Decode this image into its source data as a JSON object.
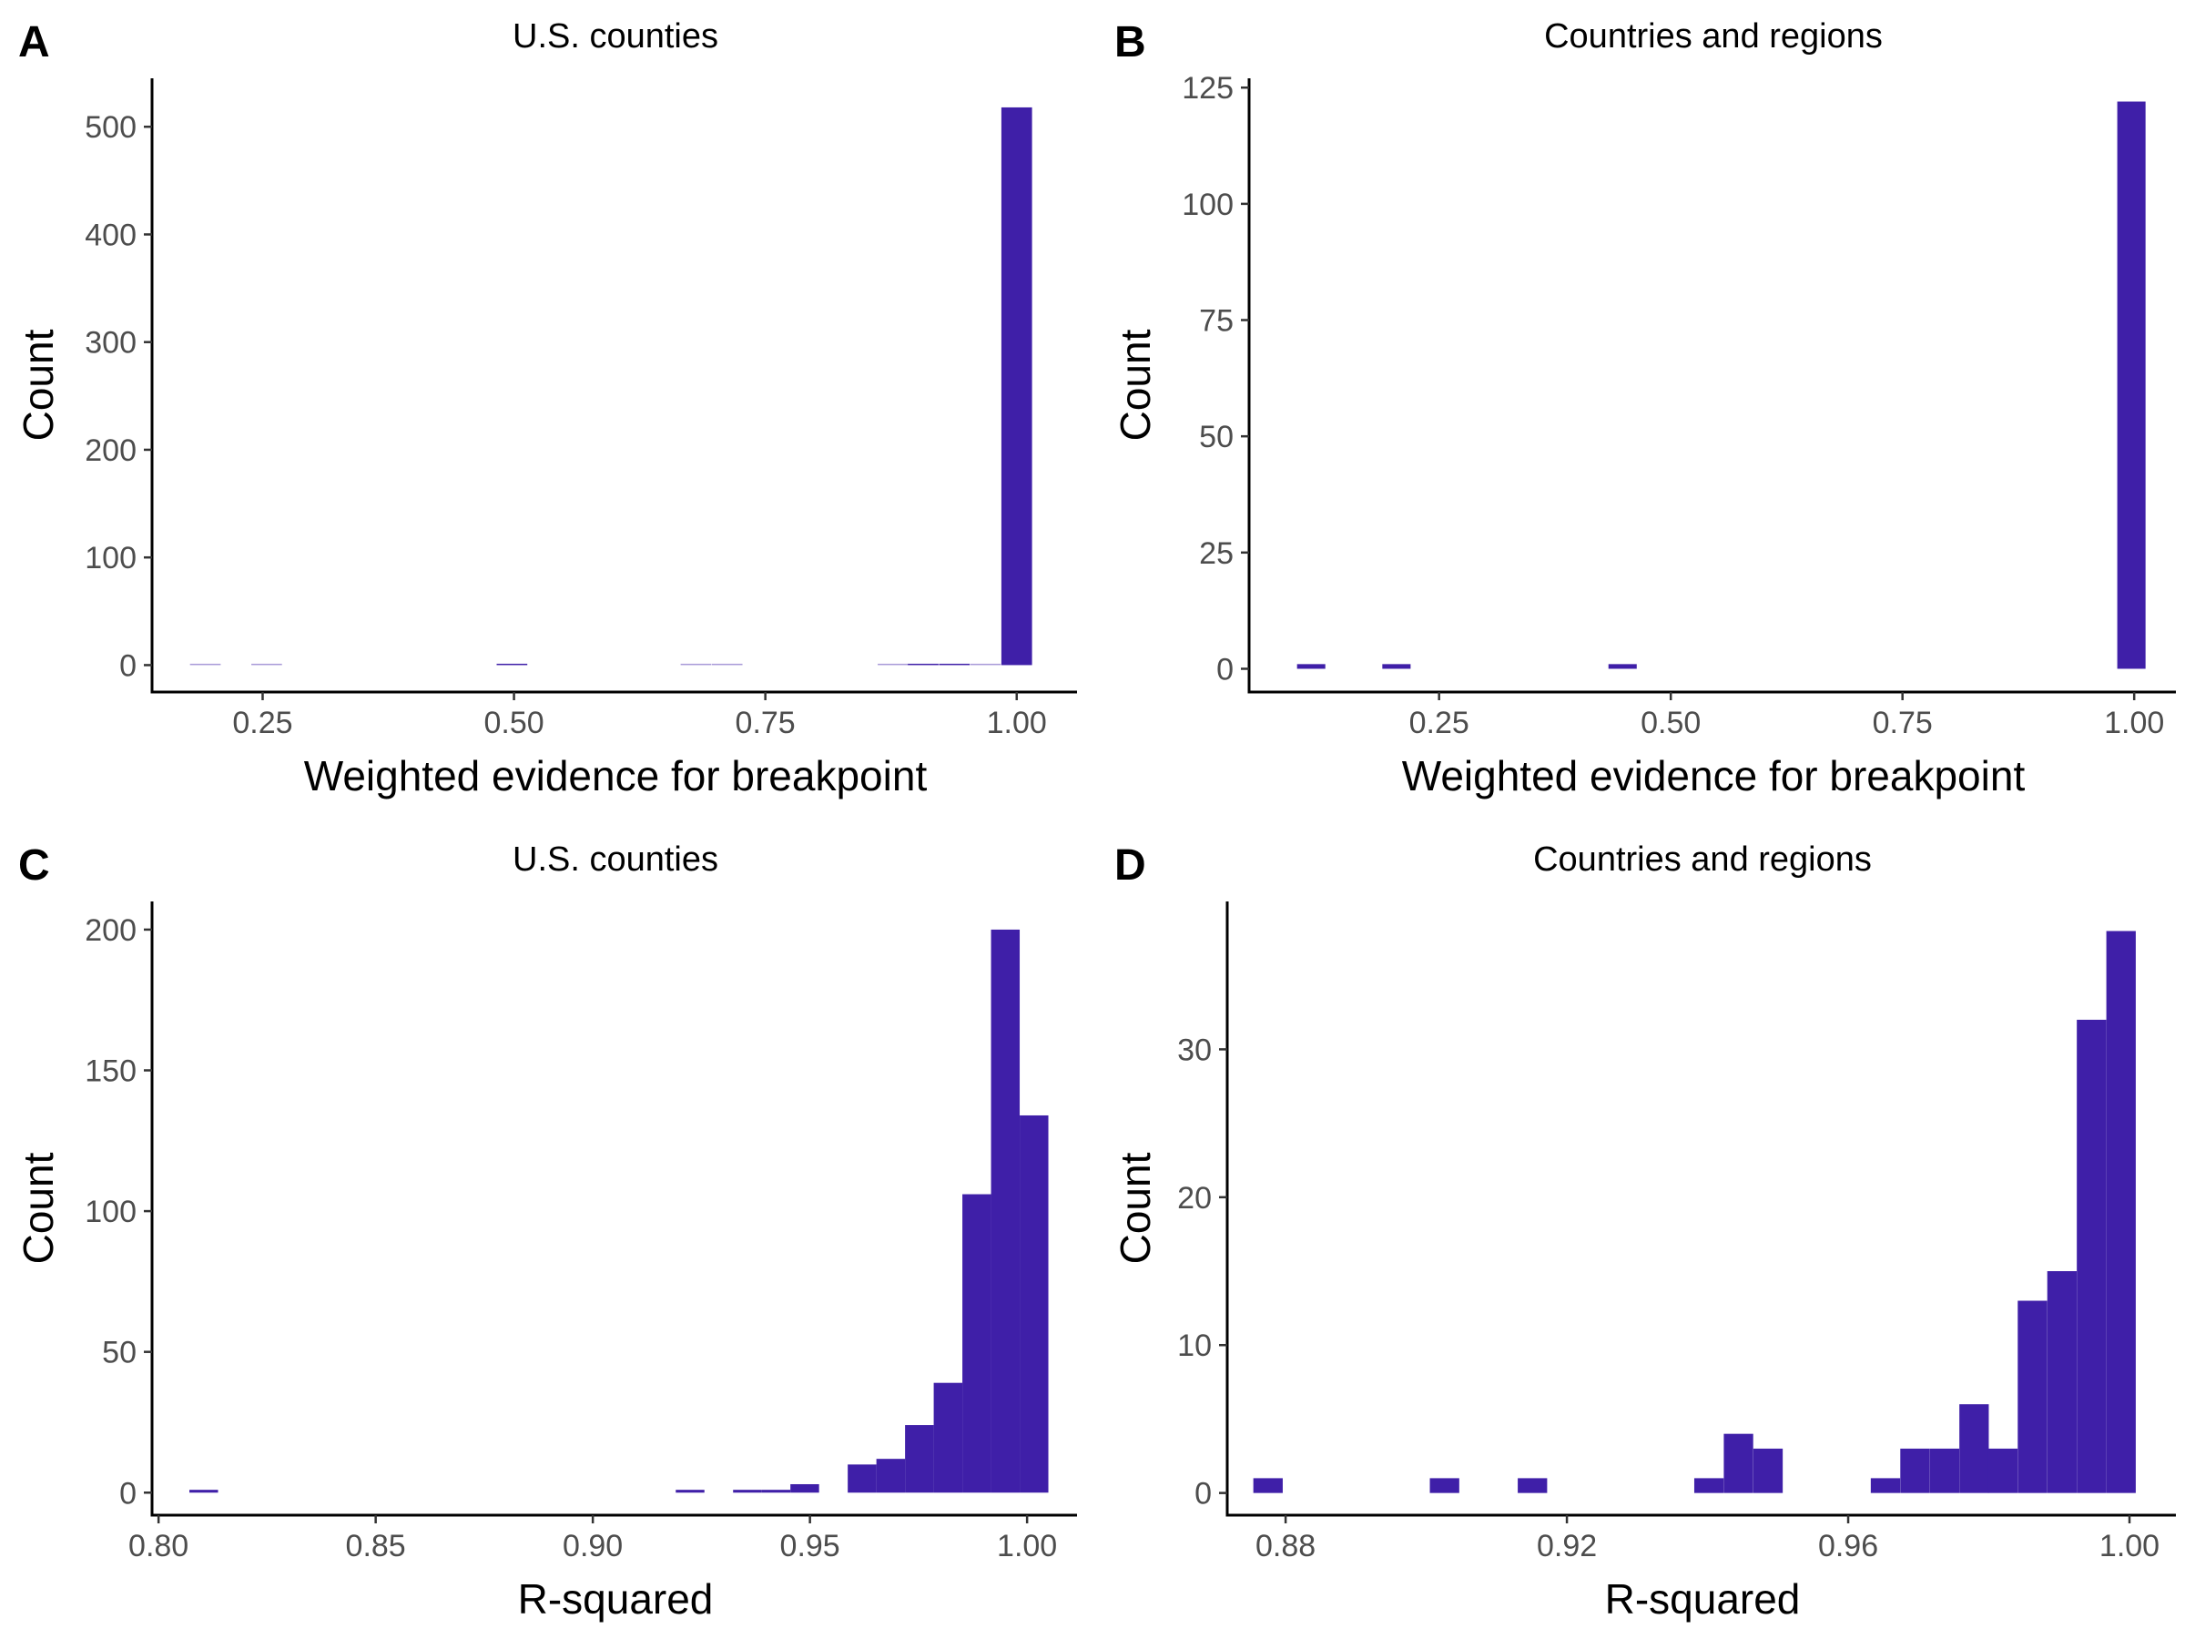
{
  "bar_color": "#3f1fa8",
  "chart_data": [
    {
      "panel": "A",
      "type": "bar",
      "title": "U.S. counties",
      "xlabel": "Weighted evidence for breakpoint",
      "ylabel": "Count",
      "xlim": [
        0.14,
        1.06
      ],
      "ylim": [
        -25,
        545
      ],
      "xticks": [
        0.25,
        0.5,
        0.75,
        1.0
      ],
      "xtick_labels": [
        "0.25",
        "0.50",
        "0.75",
        "1.00"
      ],
      "yticks": [
        0,
        100,
        200,
        300,
        400,
        500
      ],
      "ytick_labels": [
        "0",
        "100",
        "200",
        "300",
        "400",
        "500"
      ],
      "bin_width": 0.0305,
      "bins": [
        {
          "x": 0.193,
          "count": 0
        },
        {
          "x": 0.254,
          "count": 0
        },
        {
          "x": 0.498,
          "count": 1
        },
        {
          "x": 0.681,
          "count": 0
        },
        {
          "x": 0.712,
          "count": 0
        },
        {
          "x": 0.877,
          "count": 0
        },
        {
          "x": 0.907,
          "count": 1
        },
        {
          "x": 0.938,
          "count": 1
        },
        {
          "x": 0.969,
          "count": 0
        },
        {
          "x": 1.0,
          "count": 518
        }
      ]
    },
    {
      "panel": "B",
      "type": "bar",
      "title": "Countries and regions",
      "xlabel": "Weighted evidence for breakpoint",
      "ylabel": "Count",
      "xlim": [
        0.045,
        1.045
      ],
      "ylim": [
        -5,
        127
      ],
      "xticks": [
        0.25,
        0.5,
        0.75,
        1.0
      ],
      "xtick_labels": [
        "0.25",
        "0.50",
        "0.75",
        "1.00"
      ],
      "yticks": [
        0,
        25,
        50,
        75,
        100,
        125
      ],
      "ytick_labels": [
        "0",
        "25",
        "50",
        "75",
        "100",
        "125"
      ],
      "bin_width": 0.0305,
      "bins": [
        {
          "x": 0.112,
          "count": 1
        },
        {
          "x": 0.204,
          "count": 1
        },
        {
          "x": 0.448,
          "count": 1
        },
        {
          "x": 0.997,
          "count": 122
        }
      ]
    },
    {
      "panel": "C",
      "type": "bar",
      "title": "U.S. counties",
      "xlabel": "R-squared",
      "ylabel": "Count",
      "xlim": [
        0.7985,
        1.0115
      ],
      "ylim": [
        -8,
        210
      ],
      "xticks": [
        0.8,
        0.85,
        0.9,
        0.95,
        1.0
      ],
      "xtick_labels": [
        "0.80",
        "0.85",
        "0.90",
        "0.95",
        "1.00"
      ],
      "yticks": [
        0,
        50,
        100,
        150,
        200
      ],
      "ytick_labels": [
        "0",
        "50",
        "100",
        "150",
        "200"
      ],
      "bin_width": 0.0066,
      "bins": [
        {
          "x": 0.8104,
          "count": 1
        },
        {
          "x": 0.9224,
          "count": 1
        },
        {
          "x": 0.9356,
          "count": 1
        },
        {
          "x": 0.9422,
          "count": 1
        },
        {
          "x": 0.9488,
          "count": 3
        },
        {
          "x": 0.962,
          "count": 10
        },
        {
          "x": 0.9686,
          "count": 12
        },
        {
          "x": 0.9752,
          "count": 24
        },
        {
          "x": 0.9818,
          "count": 39
        },
        {
          "x": 0.9884,
          "count": 106
        },
        {
          "x": 0.995,
          "count": 200
        },
        {
          "x": 1.0016,
          "count": 134
        }
      ]
    },
    {
      "panel": "D",
      "type": "bar",
      "title": "Countries and regions",
      "xlabel": "R-squared",
      "ylabel": "Count",
      "xlim": [
        0.8717,
        1.0066
      ],
      "ylim": [
        -1.5,
        40
      ],
      "xticks": [
        0.88,
        0.92,
        0.96,
        1.0
      ],
      "xtick_labels": [
        "0.88",
        "0.92",
        "0.96",
        "1.00"
      ],
      "yticks": [
        0,
        10,
        20,
        30
      ],
      "ytick_labels": [
        "0",
        "10",
        "20",
        "30"
      ],
      "bin_width": 0.00418,
      "bins": [
        {
          "x": 0.8775,
          "count": 1
        },
        {
          "x": 0.9026,
          "count": 1
        },
        {
          "x": 0.9151,
          "count": 1
        },
        {
          "x": 0.9402,
          "count": 1
        },
        {
          "x": 0.9444,
          "count": 4
        },
        {
          "x": 0.9486,
          "count": 3
        },
        {
          "x": 0.9653,
          "count": 1
        },
        {
          "x": 0.9695,
          "count": 3
        },
        {
          "x": 0.9737,
          "count": 3
        },
        {
          "x": 0.9779,
          "count": 6
        },
        {
          "x": 0.982,
          "count": 3
        },
        {
          "x": 0.9862,
          "count": 13
        },
        {
          "x": 0.9904,
          "count": 15
        },
        {
          "x": 0.9946,
          "count": 32
        },
        {
          "x": 0.9988,
          "count": 38
        }
      ]
    }
  ]
}
